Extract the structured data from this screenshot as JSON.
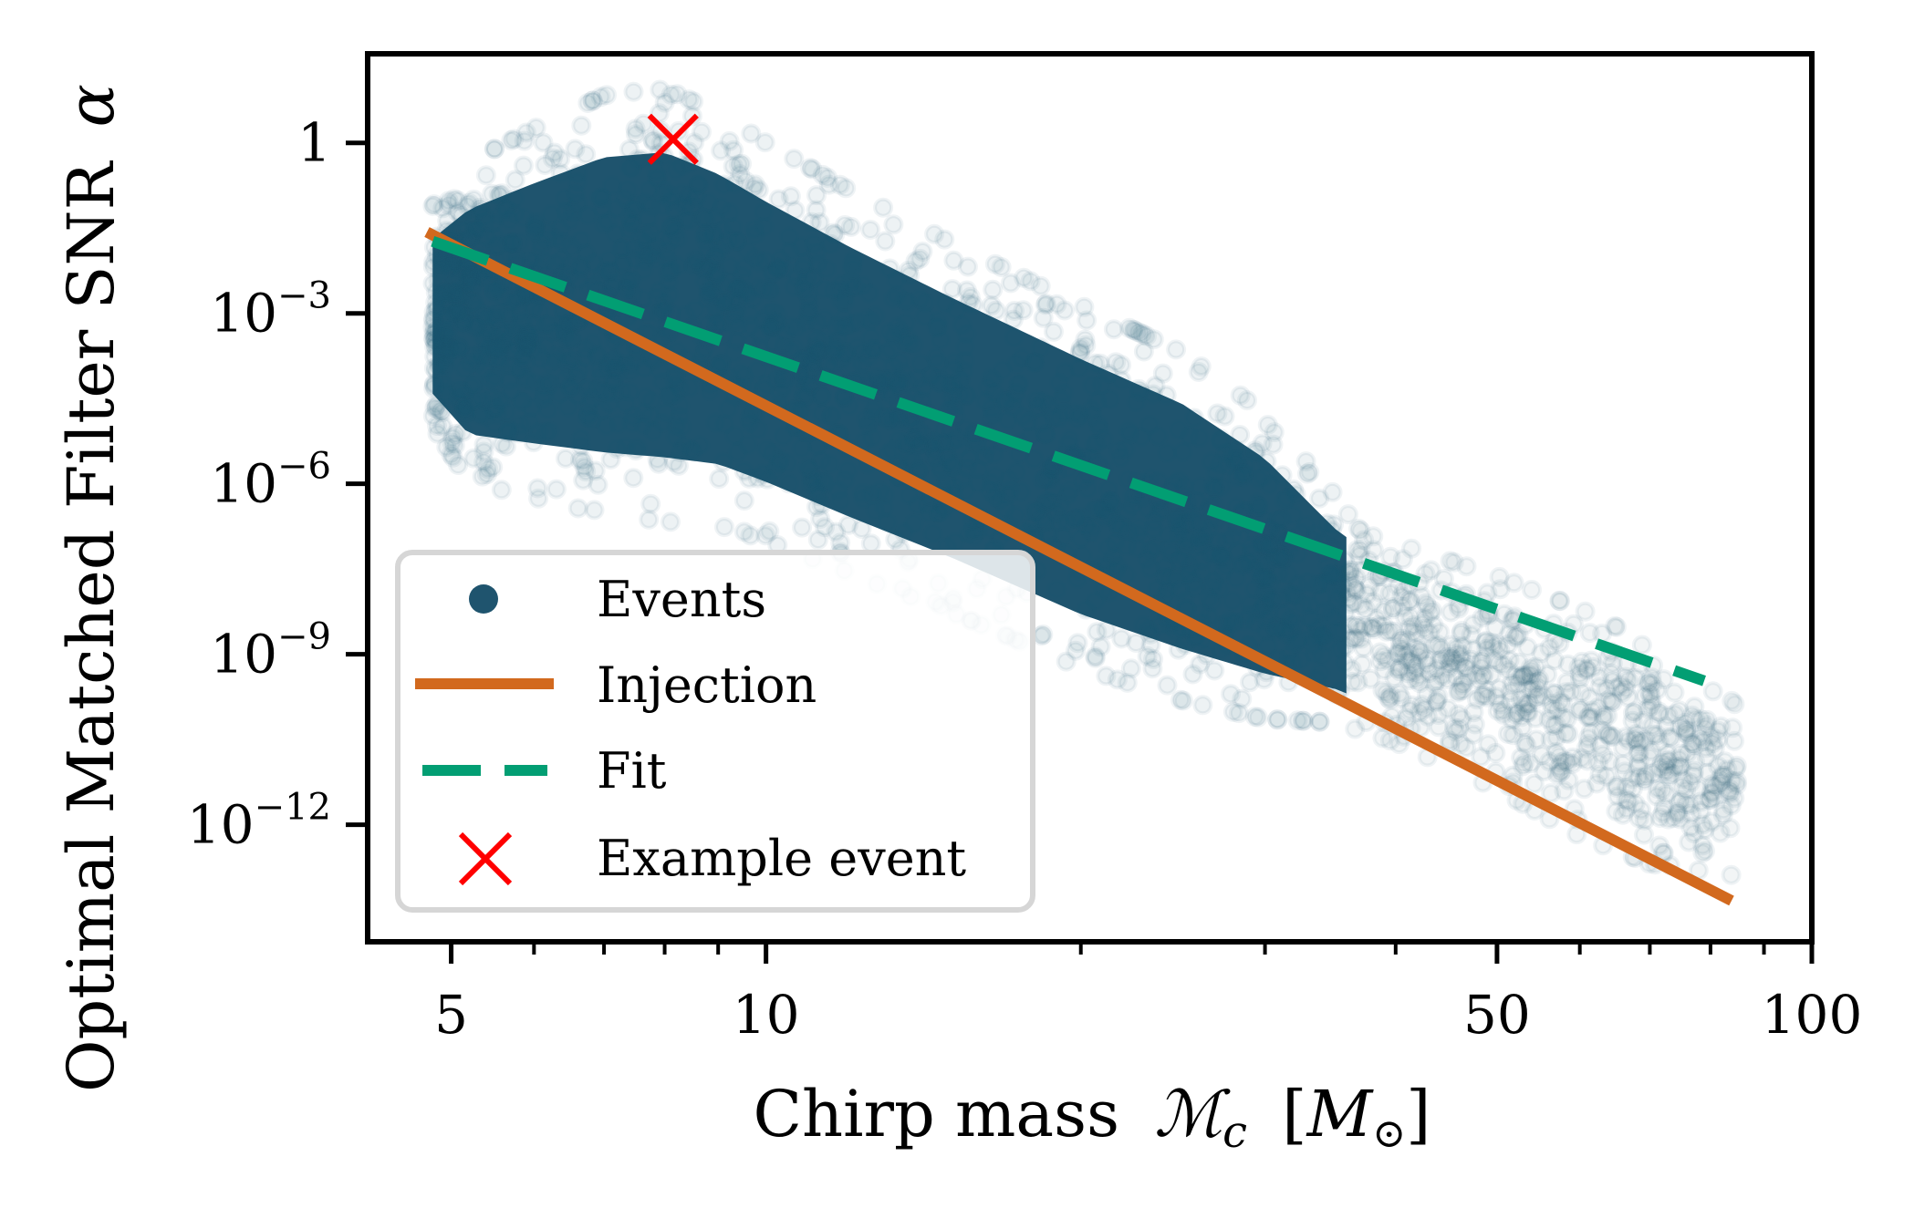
{
  "chart_data": {
    "type": "scatter",
    "title": "",
    "xlabel": "Chirp mass",
    "xlabel_math": "ℳ",
    "xlabel_math_sub": "c",
    "xlabel_unit_open": "[",
    "xlabel_unit": "M",
    "xlabel_unit_sub": "⊙",
    "xlabel_unit_close": "]",
    "ylabel": "Optimal Matched Filter SNR",
    "ylabel_math": "α",
    "xscale": "log",
    "yscale": "log",
    "xlim": [
      4.16,
      100
    ],
    "ylim": [
      8.7e-15,
      37
    ],
    "grid": false,
    "x_ticks": [
      {
        "value": 5,
        "label": "5"
      },
      {
        "value": 10,
        "label": "10"
      },
      {
        "value": 50,
        "label": "50"
      },
      {
        "value": 100,
        "label": "100"
      }
    ],
    "x_minor_ticks": [
      6,
      7,
      8,
      9,
      20,
      30,
      40,
      60,
      70,
      80,
      90
    ],
    "y_ticks": [
      {
        "value": 1,
        "base": "1",
        "exp": ""
      },
      {
        "value": 0.001,
        "base": "10",
        "exp": "−3"
      },
      {
        "value": 1e-06,
        "base": "10",
        "exp": "−6"
      },
      {
        "value": 1e-09,
        "base": "10",
        "exp": "−9"
      },
      {
        "value": 1e-12,
        "base": "10",
        "exp": "−12"
      }
    ],
    "legend": {
      "position": "lower-left",
      "entries": [
        {
          "label": "Events",
          "kind": "marker-dot",
          "color": "#1f546e"
        },
        {
          "label": "Injection",
          "kind": "solid-line",
          "color": "#d2691e"
        },
        {
          "label": "Fit",
          "kind": "dashed-line",
          "color": "#029e73"
        },
        {
          "label": "Example event",
          "kind": "marker-x",
          "color": "#ff0000"
        }
      ]
    },
    "series": [
      {
        "name": "Events",
        "type": "scatter",
        "color": "#1f546e",
        "marker": "o",
        "alpha": 0.06,
        "note": "dense point cloud; envelope given as log10(alpha) range per chirp mass",
        "envelope": [
          {
            "x": 4.8,
            "ylog_lo": -4.6,
            "ylog_hi": -1.5
          },
          {
            "x": 5.2,
            "ylog_lo": -5.4,
            "ylog_hi": -0.9
          },
          {
            "x": 6,
            "ylog_lo": -5.6,
            "ylog_hi": -0.4
          },
          {
            "x": 7,
            "ylog_lo": -5.8,
            "ylog_hi": 0.1
          },
          {
            "x": 8,
            "ylog_lo": -5.9,
            "ylog_hi": 0.2
          },
          {
            "x": 9,
            "ylog_lo": -6.0,
            "ylog_hi": -0.2
          },
          {
            "x": 10,
            "ylog_lo": -6.3,
            "ylog_hi": -0.7
          },
          {
            "x": 12,
            "ylog_lo": -6.9,
            "ylog_hi": -1.5
          },
          {
            "x": 15,
            "ylog_lo": -7.6,
            "ylog_hi": -2.4
          },
          {
            "x": 20,
            "ylog_lo": -8.6,
            "ylog_hi": -3.5
          },
          {
            "x": 25,
            "ylog_lo": -9.2,
            "ylog_hi": -4.3
          },
          {
            "x": 30,
            "ylog_lo": -9.6,
            "ylog_hi": -5.3
          },
          {
            "x": 35,
            "ylog_lo": -9.8,
            "ylog_hi": -6.6
          },
          {
            "x": 40,
            "ylog_lo": -10.2,
            "ylog_hi": -7.4
          },
          {
            "x": 50,
            "ylog_lo": -11.0,
            "ylog_hi": -8.0
          },
          {
            "x": 60,
            "ylog_lo": -11.8,
            "ylog_hi": -8.6
          },
          {
            "x": 70,
            "ylog_lo": -12.3,
            "ylog_hi": -9.2
          },
          {
            "x": 85,
            "ylog_lo": -12.6,
            "ylog_hi": -10.2
          }
        ]
      },
      {
        "name": "Injection",
        "type": "line",
        "color": "#d2691e",
        "style": "solid",
        "x": [
          4.74,
          83.8
        ],
        "y": [
          0.027,
          4.6e-14
        ]
      },
      {
        "name": "Fit",
        "type": "line",
        "color": "#029e73",
        "style": "dashed",
        "x": [
          4.8,
          78.9
        ],
        "y": [
          0.0185,
          3.4e-10
        ]
      },
      {
        "name": "Example event",
        "type": "scatter",
        "color": "#ff0000",
        "marker": "x",
        "x": [
          8.15
        ],
        "y": [
          1.16
        ]
      }
    ]
  }
}
